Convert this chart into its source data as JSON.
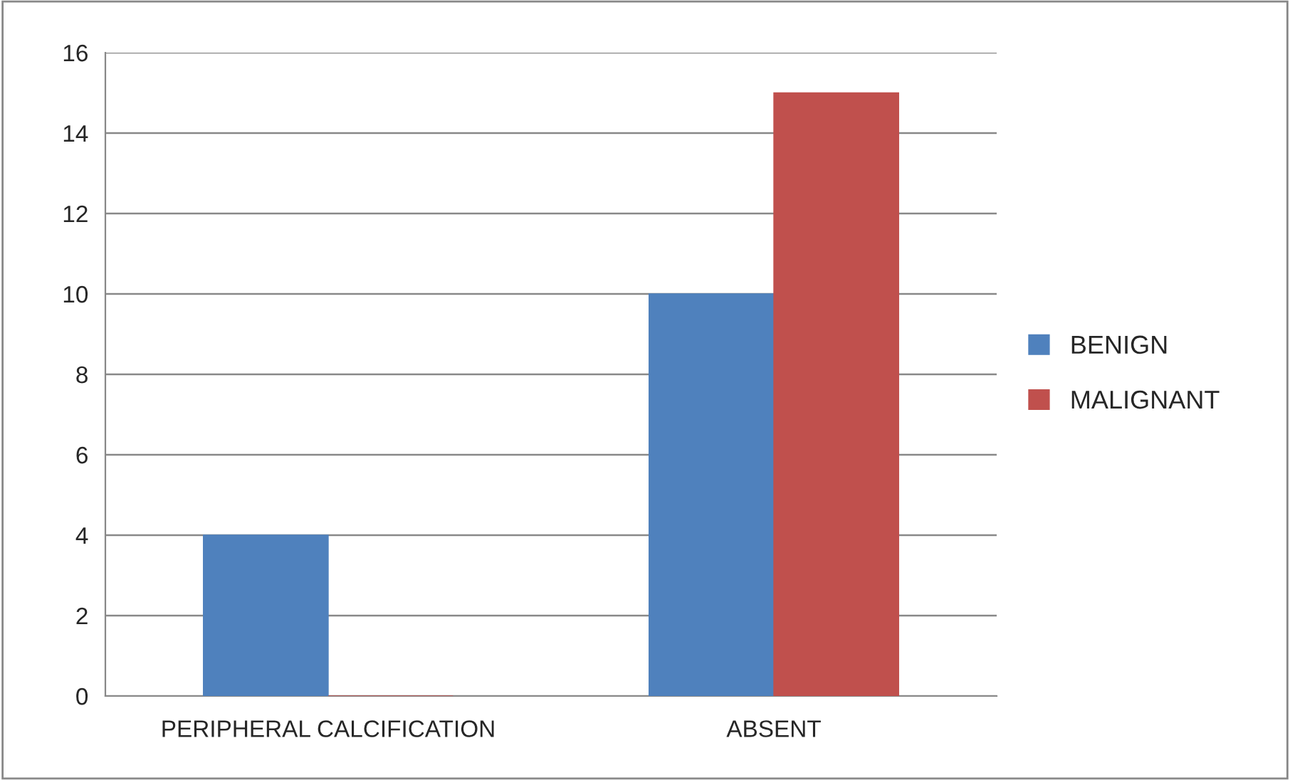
{
  "chart_data": {
    "type": "bar",
    "categories": [
      "PERIPHERAL CALCIFICATION",
      "ABSENT"
    ],
    "series": [
      {
        "name": "BENIGN",
        "color": "#4f81bd",
        "values": [
          4,
          10
        ]
      },
      {
        "name": "MALIGNANT",
        "color": "#c0504d",
        "values": [
          0,
          15
        ]
      }
    ],
    "ylim": [
      0,
      16
    ],
    "yticks": [
      0,
      2,
      4,
      6,
      8,
      10,
      12,
      14,
      16
    ],
    "grid": "y",
    "legend": "right"
  }
}
